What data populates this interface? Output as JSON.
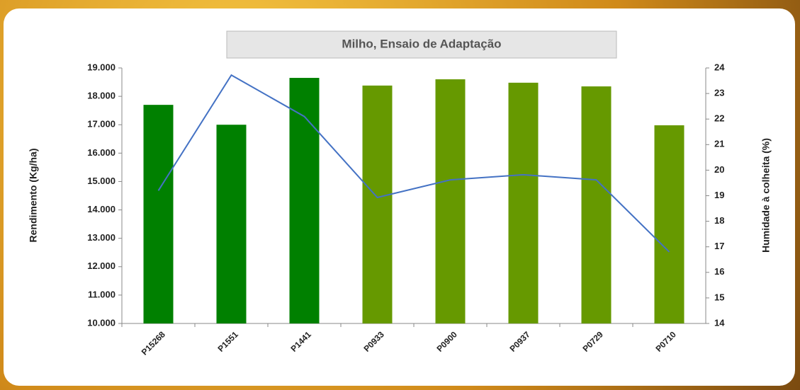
{
  "chart_data": {
    "type": "bar-line",
    "title": "Milho, Ensaio  de Adaptação",
    "ylabel": "Rendimento (Kg/ha)",
    "y2label": "Humidade à colheita (%)",
    "categories": [
      "P15268",
      "P1551",
      "P1441",
      "P0933",
      "P0900",
      "P0937",
      "P0729",
      "P0710"
    ],
    "series": [
      {
        "type": "bar",
        "colors": [
          "#008000",
          "#008000",
          "#008000",
          "#669900",
          "#669900",
          "#669900",
          "#669900",
          "#669900"
        ],
        "values": [
          17700,
          17000,
          18650,
          18380,
          18600,
          18480,
          18350,
          16980
        ]
      },
      {
        "type": "line",
        "axis": "y2",
        "color": "#4472c4",
        "values": [
          19.2,
          23.72,
          22.1,
          18.93,
          19.62,
          19.82,
          19.62,
          16.8
        ]
      }
    ],
    "ylim": [
      10000,
      19000
    ],
    "yticks": [
      {
        "value": 10000,
        "label": "10.000"
      },
      {
        "value": 11000,
        "label": "11.000"
      },
      {
        "value": 12000,
        "label": "12.000"
      },
      {
        "value": 13000,
        "label": "13.000"
      },
      {
        "value": 14000,
        "label": "14.000"
      },
      {
        "value": 15000,
        "label": "15.000"
      },
      {
        "value": 16000,
        "label": "16.000"
      },
      {
        "value": 17000,
        "label": "17.000"
      },
      {
        "value": 18000,
        "label": "18.000"
      },
      {
        "value": 19000,
        "label": "19.000"
      }
    ],
    "y2lim": [
      14,
      24
    ],
    "y2ticks": [
      14,
      15,
      16,
      17,
      18,
      19,
      20,
      21,
      22,
      23,
      24
    ]
  }
}
